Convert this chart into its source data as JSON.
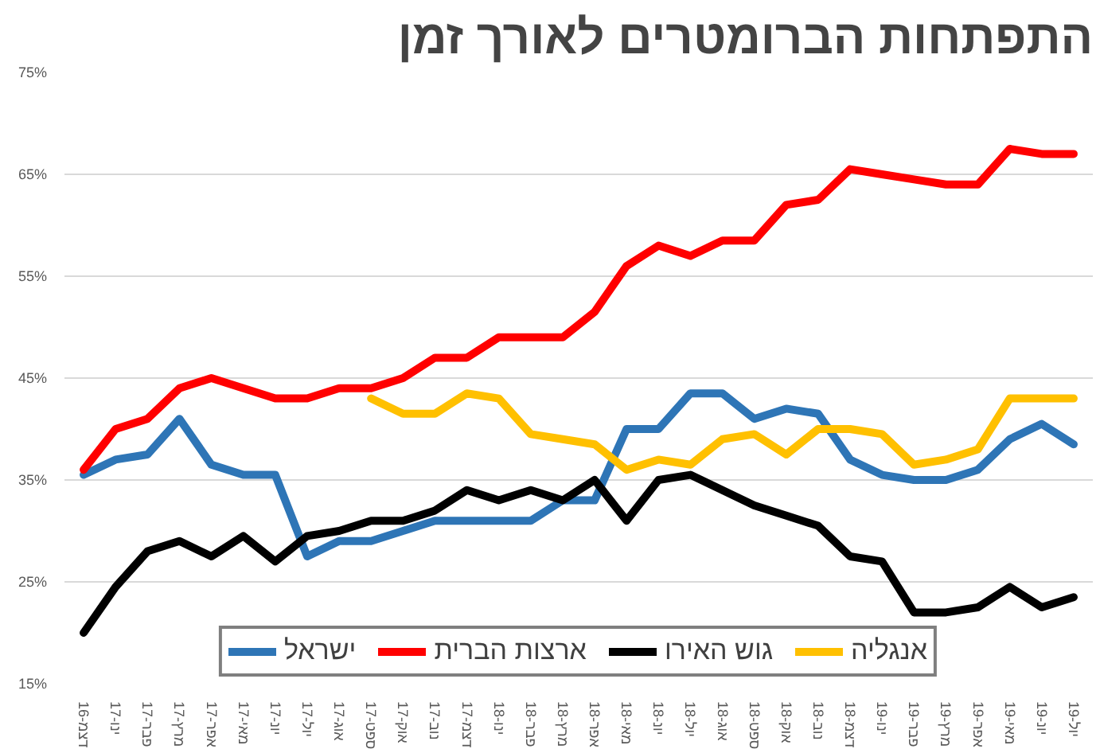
{
  "chart_data": {
    "type": "line",
    "title": "התפתחות הברומטרים לאורך זמן",
    "categories": [
      "דצמ-16",
      "ינו-17",
      "פבר-17",
      "מרץ-17",
      "אפר-17",
      "מאי-17",
      "יונ-17",
      "יול-17",
      "אוג-17",
      "ספט-17",
      "אוק-17",
      "נוב-17",
      "דצמ-17",
      "ינו-18",
      "פבר-18",
      "מרץ-18",
      "אפר-18",
      "מאי-18",
      "יונ-18",
      "יול-18",
      "אוג-18",
      "ספט-18",
      "אוק-18",
      "נוב-18",
      "דצמ-18",
      "ינו-19",
      "פבר-19",
      "מרץ-19",
      "אפר-19",
      "מאי-19",
      "יונ-19",
      "יול-19"
    ],
    "series": [
      {
        "name": "ישראל",
        "color": "#2e75b6",
        "values": [
          35.5,
          37,
          37.5,
          41,
          36.5,
          35.5,
          35.5,
          27.5,
          29,
          29,
          30,
          31,
          31,
          31,
          31,
          33,
          33,
          40,
          40,
          43.5,
          43.5,
          41,
          42,
          41.5,
          37,
          35.5,
          35,
          35,
          36,
          39,
          40.5,
          38.5
        ]
      },
      {
        "name": "ארצות הברית",
        "color": "#ff0000",
        "values": [
          36,
          40,
          41,
          44,
          45,
          44,
          43,
          43,
          44,
          44,
          45,
          47,
          47,
          49,
          49,
          49,
          51.5,
          56,
          58,
          57,
          58.5,
          58.5,
          62,
          62.5,
          65.5,
          65,
          64.5,
          64,
          64,
          67.5,
          67,
          67
        ]
      },
      {
        "name": "גוש האירו",
        "color": "#000000",
        "values": [
          20,
          24.5,
          28,
          29,
          27.5,
          29.5,
          27,
          29.5,
          30,
          31,
          31,
          32,
          34,
          33,
          34,
          33,
          35,
          31,
          35,
          35.5,
          34,
          32.5,
          31.5,
          30.5,
          27.5,
          27,
          22,
          22,
          22.5,
          24.5,
          22.5,
          23.5
        ]
      },
      {
        "name": "אנגליה",
        "color": "#ffc000",
        "values": [
          null,
          null,
          null,
          null,
          null,
          null,
          null,
          null,
          null,
          43,
          41.5,
          41.5,
          43.5,
          43,
          39.5,
          39,
          38.5,
          36,
          37,
          36.5,
          39,
          39.5,
          37.5,
          40,
          40,
          39.5,
          36.5,
          37,
          38,
          43,
          43,
          43
        ]
      }
    ],
    "ylim": [
      15,
      75
    ],
    "yticks": [
      {
        "value": 15,
        "label": "15%"
      },
      {
        "value": 25,
        "label": "25%"
      },
      {
        "value": 35,
        "label": "35%"
      },
      {
        "value": 45,
        "label": "45%"
      },
      {
        "value": 55,
        "label": "55%"
      },
      {
        "value": 65,
        "label": "65%"
      },
      {
        "value": 75,
        "label": "75%"
      }
    ],
    "grid": "y",
    "legend": "bottom",
    "marker": "none",
    "line_style": "solid"
  }
}
